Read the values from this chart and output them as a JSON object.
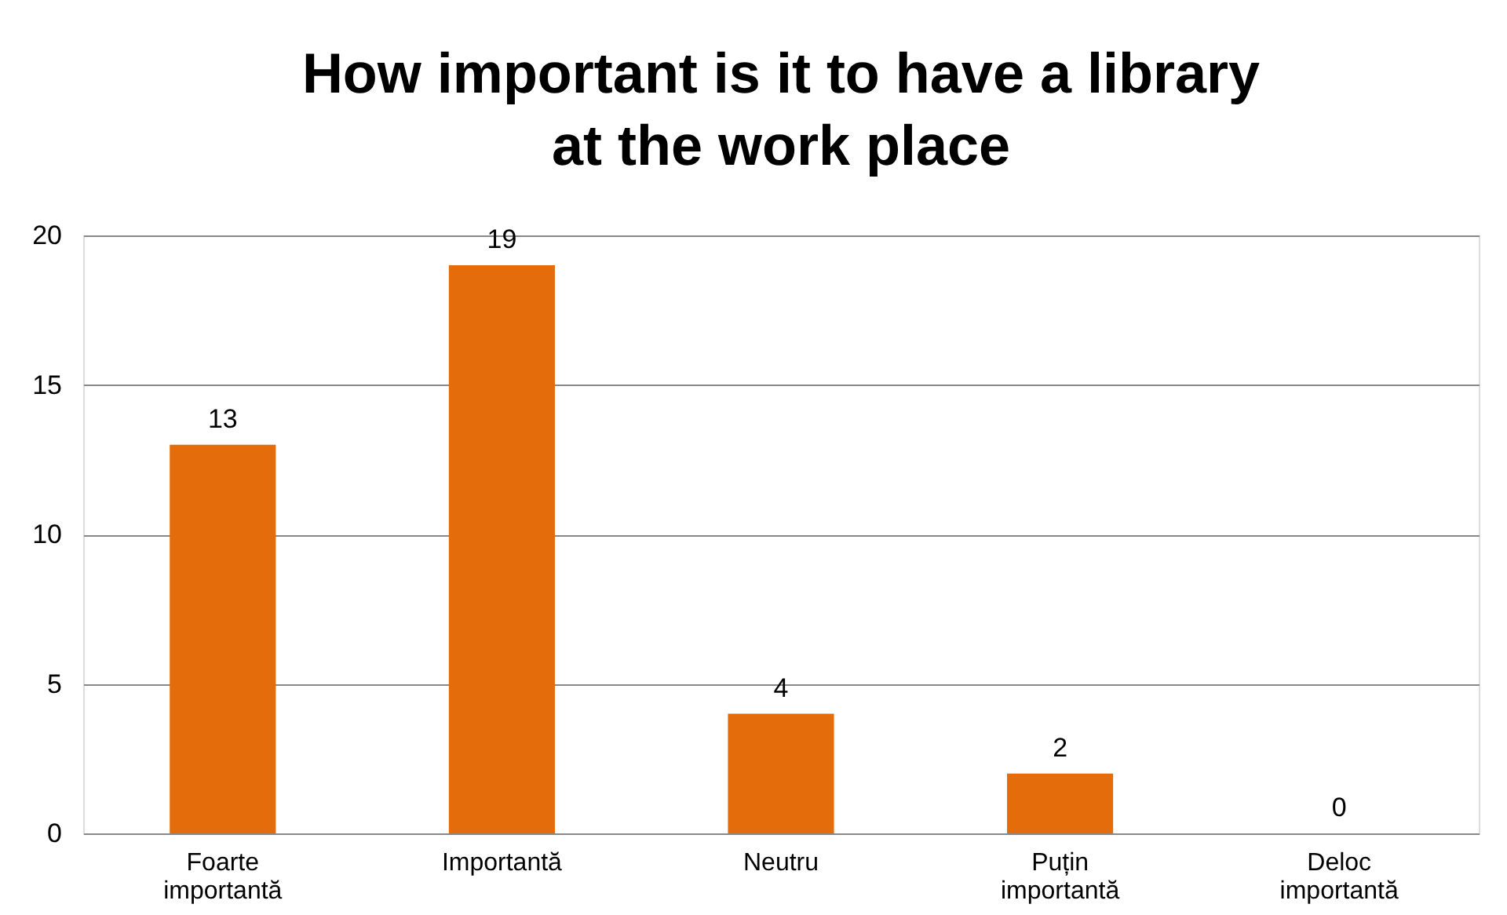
{
  "chart_data": {
    "type": "bar",
    "title": "How important is it to have a library\nat the work place",
    "categories": [
      "Foarte importantă",
      "Importantă",
      "Neutru",
      "Puțin importantă",
      "Deloc importantă"
    ],
    "values": [
      13,
      19,
      4,
      2,
      0
    ],
    "color": "#e46c0a",
    "ylim": [
      0,
      20
    ],
    "yticks": [
      0,
      5,
      10,
      15,
      20
    ],
    "grid": "y",
    "data_labels": true
  }
}
